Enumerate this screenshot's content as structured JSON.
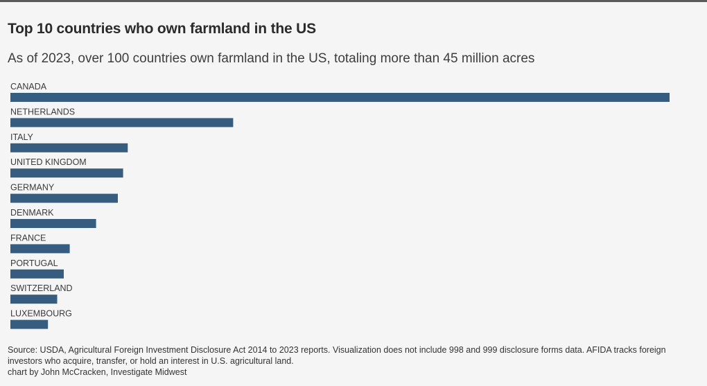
{
  "header": {
    "title": "Top 10 countries who own farmland in the US",
    "subtitle": "As of 2023, over 100 countries own farmland in the US, totaling more than 45 million acres"
  },
  "footer": {
    "source": "Source: USDA, Agricultural Foreign Investment Disclosure Act 2014 to 2023 reports. Visualization does not include 998 and 999 disclosure forms data. AFIDA tracks foreign investors who acquire, transfer, or hold an interest in U.S. agricultural land.",
    "credit": "chart by John McCracken, Investigate Midwest"
  },
  "colors": {
    "bar": "#365c80",
    "label": "#3a3a3a",
    "background": "#f5f5f6"
  },
  "chart_data": {
    "type": "bar",
    "orientation": "horizontal",
    "title": "Top 10 countries who own farmland in the US",
    "subtitle": "As of 2023, over 100 countries own farmland in the US, totaling more than 45 million acres",
    "categories": [
      "CANADA",
      "NETHERLANDS",
      "ITALY",
      "UNITED KINGDOM",
      "GERMANY",
      "DENMARK",
      "FRANCE",
      "PORTUGAL",
      "SWITZERLAND",
      "LUXEMBOURG"
    ],
    "values": [
      100,
      33.8,
      17.8,
      17.1,
      16.3,
      13.0,
      9.0,
      8.1,
      7.1,
      5.7
    ],
    "value_scale": "relative to the largest bar (CANADA = 100); no axis or data labels are printed",
    "xlim": [
      0,
      100
    ],
    "grid": false,
    "legend": "none",
    "xlabel": "",
    "ylabel": ""
  }
}
